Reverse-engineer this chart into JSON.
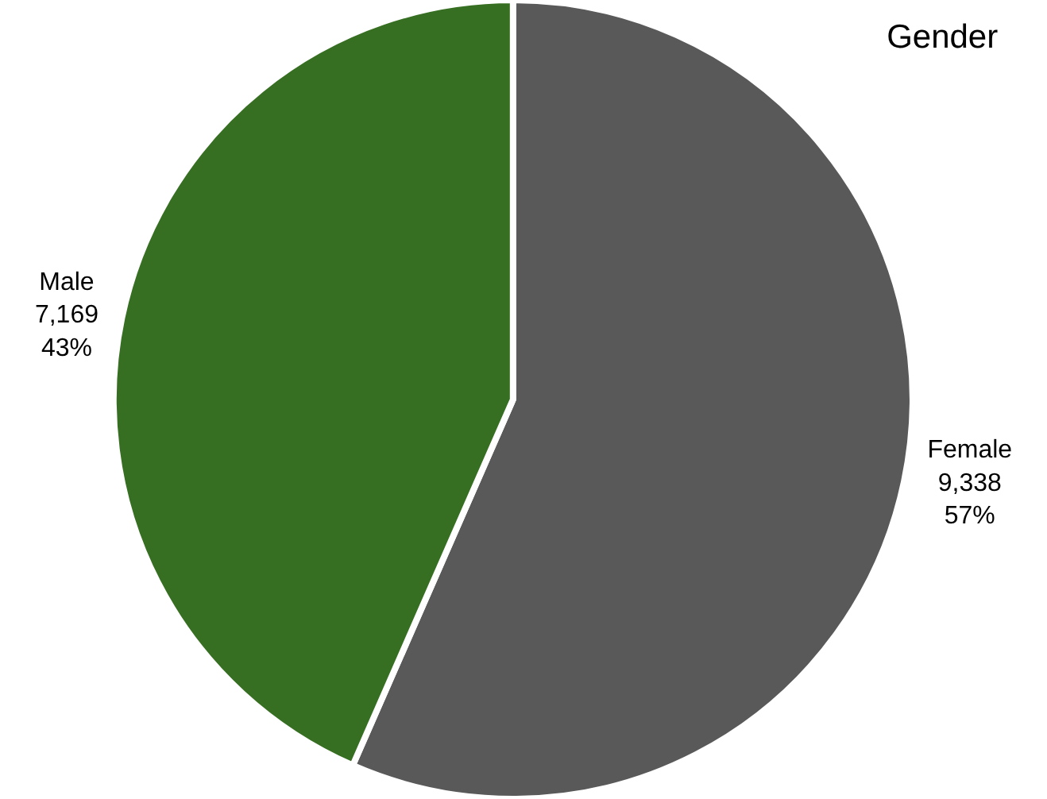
{
  "chart_data": {
    "type": "pie",
    "title": "Gender",
    "categories": [
      "Female",
      "Male"
    ],
    "values": [
      9338,
      7169
    ],
    "colors": [
      "#595959",
      "#376f22"
    ],
    "value_labels": [
      "9,338\n57%",
      "7,169\n43%"
    ],
    "legend": false
  }
}
